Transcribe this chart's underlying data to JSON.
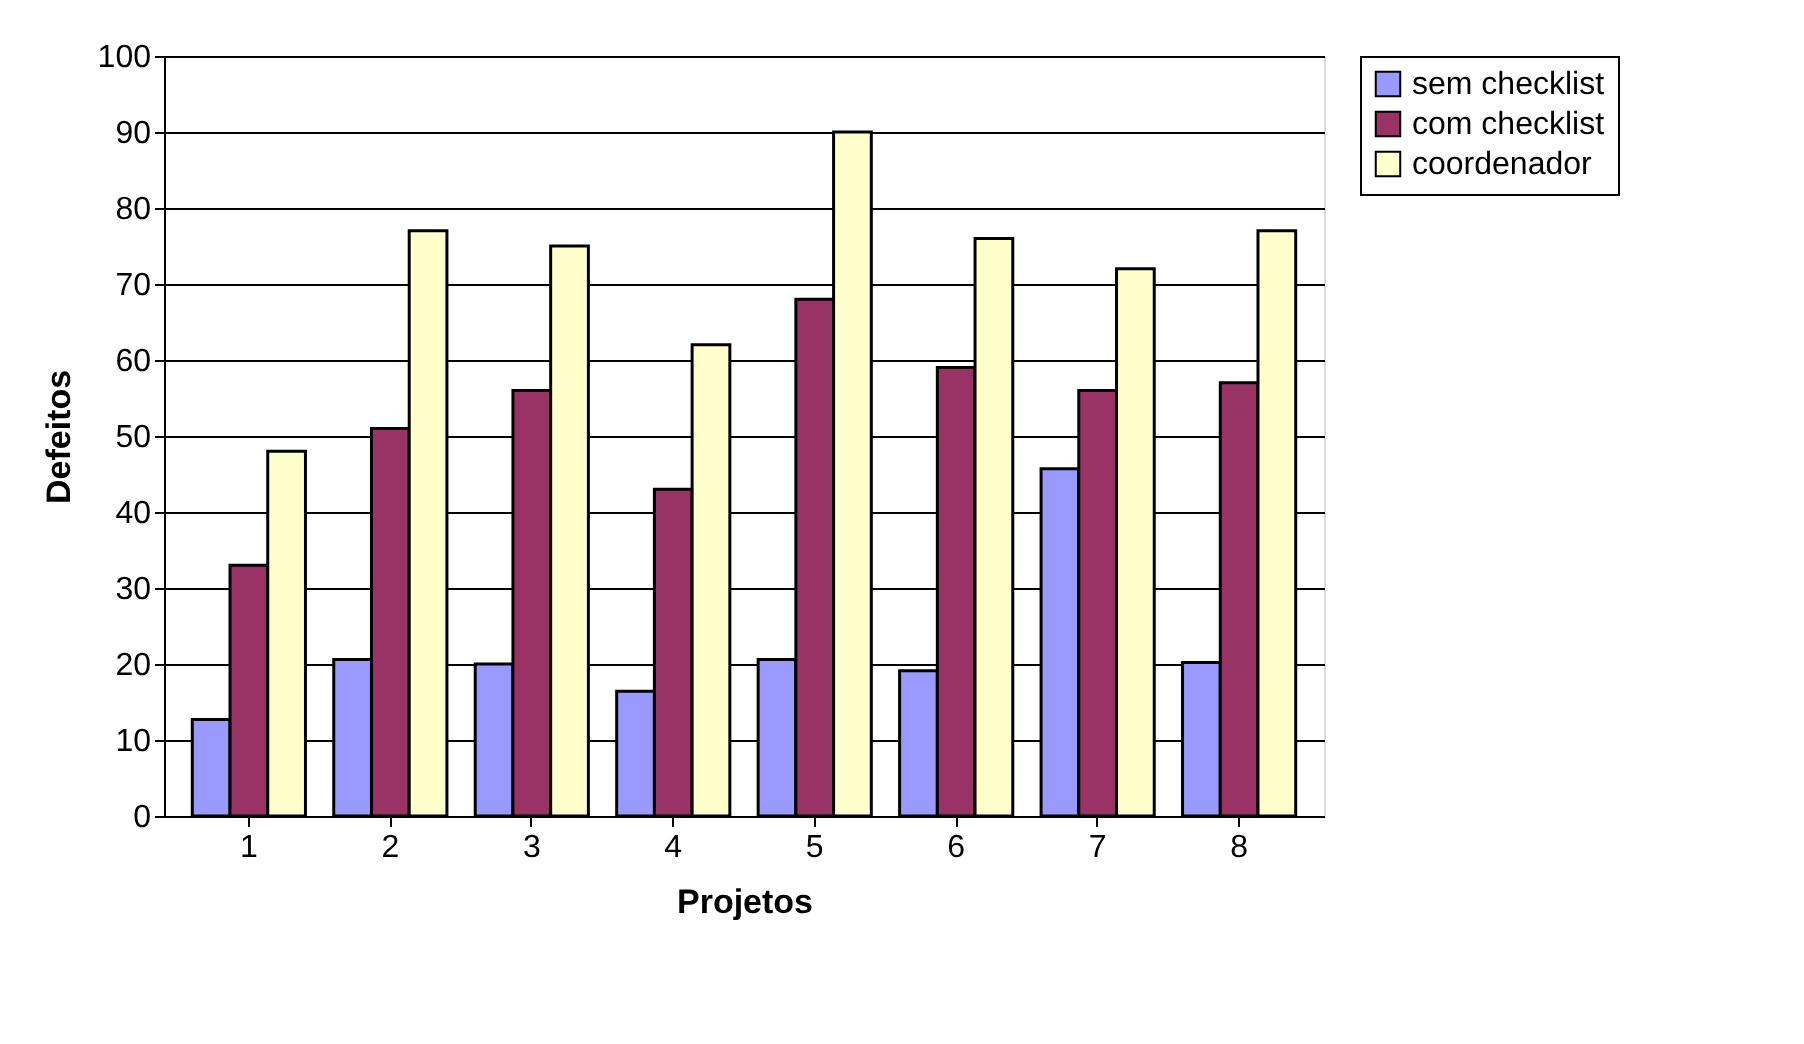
{
  "chart_data": {
    "type": "bar",
    "xlabel": "Projetos",
    "ylabel": "Defeitos",
    "categories": [
      "1",
      "2",
      "3",
      "4",
      "5",
      "6",
      "7",
      "8"
    ],
    "series": [
      {
        "name": "sem checklist",
        "color": "#9999ff",
        "values": [
          12.7,
          20.6,
          20,
          16.4,
          20.6,
          19.1,
          45.7,
          20.2
        ]
      },
      {
        "name": "com checklist",
        "color": "#993366",
        "values": [
          33,
          51,
          56,
          43,
          68,
          59,
          56,
          57
        ]
      },
      {
        "name": "coordenador",
        "color": "#ffffcc",
        "values": [
          48,
          77,
          75,
          62,
          90,
          76,
          72,
          77
        ]
      }
    ],
    "ylim": [
      0,
      100
    ],
    "yticks": [
      0,
      10,
      20,
      30,
      40,
      50,
      60,
      70,
      80,
      90,
      100
    ],
    "grid": "y",
    "legend": "right"
  }
}
